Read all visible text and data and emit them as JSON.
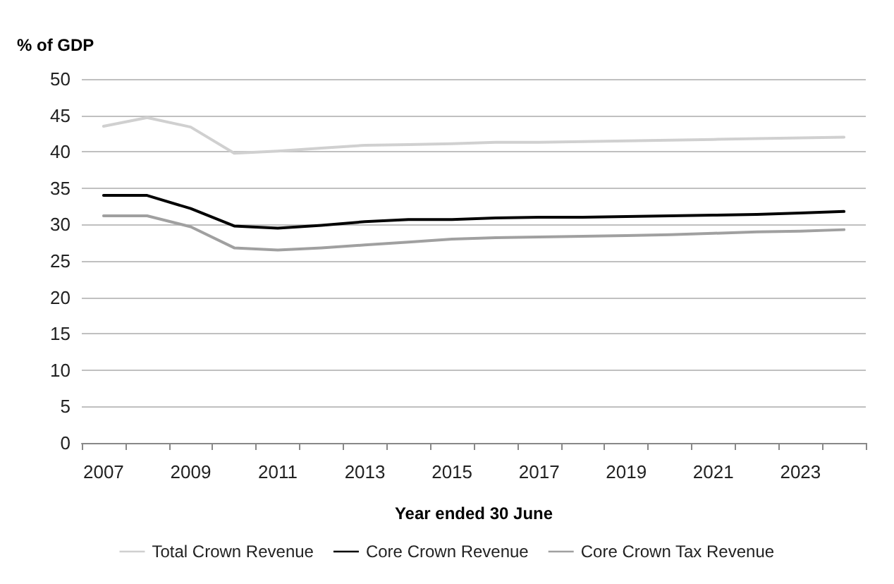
{
  "chart_data": {
    "type": "line",
    "ylabel": "% of GDP",
    "xlabel": "Year ended 30 June",
    "categories": [
      "2007",
      null,
      "2009",
      null,
      "2011",
      null,
      "2013",
      null,
      "2015",
      null,
      "2017",
      null,
      "2019",
      null,
      "2021",
      null,
      "2023",
      null
    ],
    "series": [
      {
        "name": "Total Crown Revenue",
        "color": "#d0d0d0",
        "values": [
          43.5,
          44.7,
          43.4,
          39.8,
          40.1,
          40.5,
          40.9,
          41.0,
          41.1,
          41.3,
          41.3,
          41.4,
          41.5,
          41.6,
          41.7,
          41.8,
          41.9,
          42.0
        ]
      },
      {
        "name": "Core Crown Revenue",
        "color": "#000000",
        "values": [
          34.0,
          34.0,
          32.2,
          29.8,
          29.5,
          29.9,
          30.4,
          30.7,
          30.7,
          30.9,
          31.0,
          31.0,
          31.1,
          31.2,
          31.3,
          31.4,
          31.6,
          31.8
        ]
      },
      {
        "name": "Core Crown Tax Revenue",
        "color": "#a0a0a0",
        "values": [
          31.2,
          31.2,
          29.7,
          26.8,
          26.5,
          26.8,
          27.2,
          27.6,
          28.0,
          28.2,
          28.3,
          28.4,
          28.5,
          28.6,
          28.8,
          29.0,
          29.1,
          29.3
        ]
      }
    ],
    "ylim": [
      0,
      50
    ],
    "yticks": [
      0,
      5,
      10,
      15,
      20,
      25,
      30,
      35,
      40,
      45,
      50
    ],
    "grid": "y",
    "legend": "bottom",
    "marker": "none",
    "line_style": "solid"
  }
}
